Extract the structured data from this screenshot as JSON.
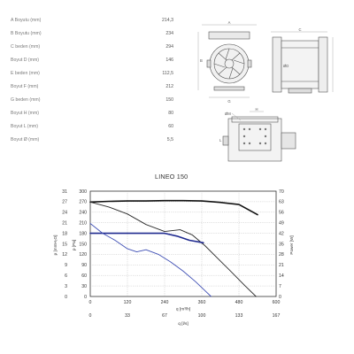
{
  "dimensions": [
    {
      "label": "A Boyutu (mm)",
      "value": "214,3"
    },
    {
      "label": "B Boyutu (mm)",
      "value": "234"
    },
    {
      "label": "C beden (mm)",
      "value": "294"
    },
    {
      "label": "Boyut D (mm)",
      "value": "146"
    },
    {
      "label": "E beden (mm)",
      "value": "112,5"
    },
    {
      "label": "Boyut F (mm)",
      "value": "212"
    },
    {
      "label": "G beden (mm)",
      "value": "150"
    },
    {
      "label": "Boyut H (mm)",
      "value": "80"
    },
    {
      "label": "Boyut L (mm)",
      "value": "60"
    },
    {
      "label": "Boyut Ø (mm)",
      "value": "5,5"
    }
  ],
  "drawing_letters": {
    "front": [
      "A",
      "B",
      "G"
    ],
    "side": [
      "C",
      "ØD"
    ],
    "bottom": [
      "ØM",
      "H",
      "L"
    ]
  },
  "chart_data": {
    "type": "line",
    "title": "LINEO 150",
    "left_axes": [
      {
        "label": "p [mmH₂O]",
        "ticks": [
          "0",
          "3",
          "6",
          "9",
          "12",
          "15",
          "18",
          "21",
          "24",
          "27",
          "31"
        ]
      },
      {
        "label": "p [Pa]",
        "ticks": [
          "0",
          "30",
          "60",
          "90",
          "120",
          "150",
          "180",
          "210",
          "240",
          "270",
          "300"
        ]
      }
    ],
    "right_axis": {
      "label": "Power [W]",
      "ticks": [
        "0",
        "7",
        "14",
        "21",
        "28",
        "35",
        "42",
        "49",
        "56",
        "63",
        "70"
      ]
    },
    "bottom_axes": [
      {
        "label": "q [m³/h]",
        "ticks": [
          "0",
          "120",
          "240",
          "360",
          "480",
          "600"
        ]
      },
      {
        "label": "q [l/s]",
        "ticks": [
          "0",
          "33",
          "67",
          "100",
          "133",
          "167"
        ]
      }
    ],
    "xlim": [
      0,
      600
    ],
    "ylim": [
      0,
      300
    ],
    "grid": true,
    "series": [
      {
        "color": "#111111",
        "width": 1.6,
        "x": [
          0,
          60,
          120,
          180,
          240,
          300,
          360,
          420,
          480,
          540
        ],
        "y": [
          269,
          271,
          272,
          272,
          273,
          273,
          272,
          268,
          262,
          233
        ]
      },
      {
        "color": "#2a2a2a",
        "width": 0.9,
        "x": [
          0,
          60,
          120,
          180,
          240,
          290,
          330,
          370,
          410,
          450,
          500,
          535
        ],
        "y": [
          269,
          255,
          235,
          205,
          185,
          190,
          175,
          145,
          110,
          75,
          30,
          0
        ]
      },
      {
        "color": "#1f2a8f",
        "width": 1.6,
        "x": [
          0,
          60,
          120,
          180,
          240,
          280,
          320,
          365
        ],
        "y": [
          180,
          180,
          180,
          180,
          180,
          172,
          160,
          153
        ]
      },
      {
        "color": "#4050b5",
        "width": 0.9,
        "x": [
          0,
          40,
          80,
          120,
          150,
          180,
          220,
          260,
          300,
          340,
          370,
          390
        ],
        "y": [
          208,
          180,
          160,
          136,
          127,
          133,
          120,
          98,
          72,
          42,
          17,
          0
        ]
      }
    ]
  }
}
